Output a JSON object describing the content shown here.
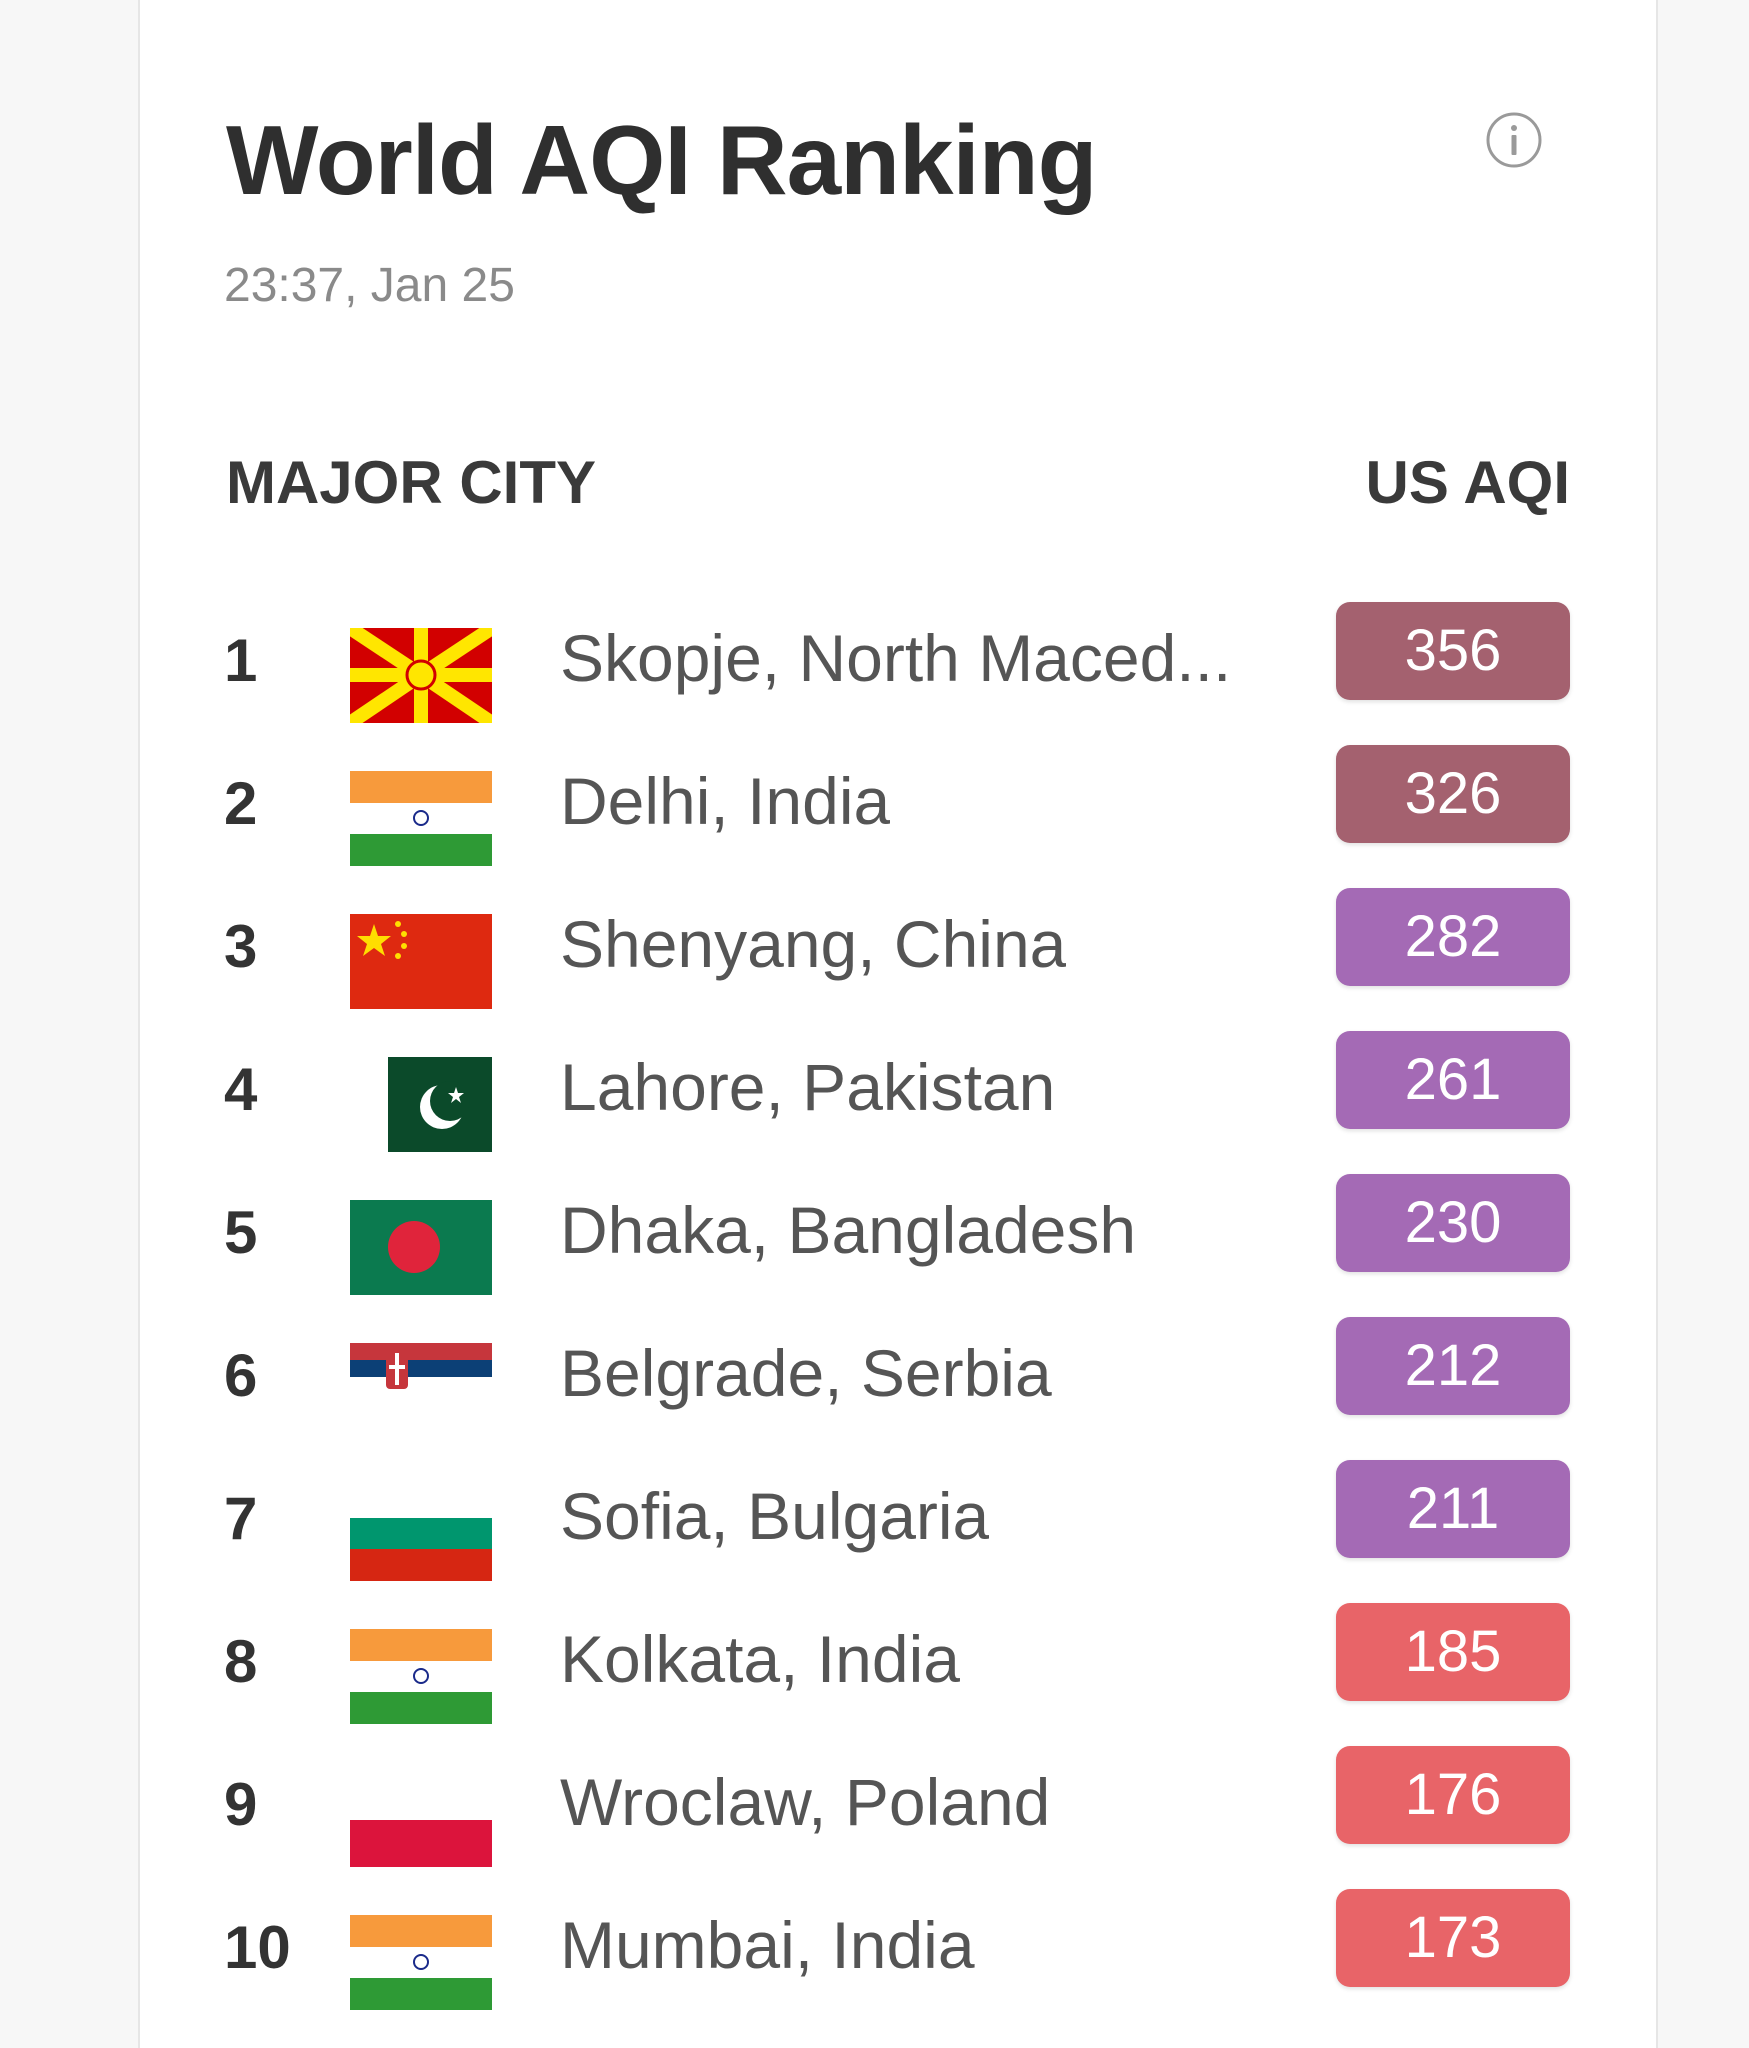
{
  "header": {
    "title": "World AQI Ranking",
    "timestamp": "23:37, Jan 25",
    "info_icon": "info-icon"
  },
  "columns": {
    "city": "MAJOR CITY",
    "aqi": "US AQI"
  },
  "colors": {
    "hazardous": "#a4616f",
    "very_unhealthy": "#a46ab5",
    "unhealthy": "#e86468"
  },
  "rankings": [
    {
      "rank": "1",
      "city": "Skopje, North Maced...",
      "aqi": "356",
      "flag": "north-macedonia-flag-icon",
      "level": "hazardous"
    },
    {
      "rank": "2",
      "city": "Delhi, India",
      "aqi": "326",
      "flag": "india-flag-icon",
      "level": "hazardous"
    },
    {
      "rank": "3",
      "city": "Shenyang, China",
      "aqi": "282",
      "flag": "china-flag-icon",
      "level": "very_unhealthy"
    },
    {
      "rank": "4",
      "city": "Lahore, Pakistan",
      "aqi": "261",
      "flag": "pakistan-flag-icon",
      "level": "very_unhealthy"
    },
    {
      "rank": "5",
      "city": "Dhaka, Bangladesh",
      "aqi": "230",
      "flag": "bangladesh-flag-icon",
      "level": "very_unhealthy"
    },
    {
      "rank": "6",
      "city": "Belgrade, Serbia",
      "aqi": "212",
      "flag": "serbia-flag-icon",
      "level": "very_unhealthy"
    },
    {
      "rank": "7",
      "city": "Sofia, Bulgaria",
      "aqi": "211",
      "flag": "bulgaria-flag-icon",
      "level": "very_unhealthy"
    },
    {
      "rank": "8",
      "city": "Kolkata, India",
      "aqi": "185",
      "flag": "india-flag-icon",
      "level": "unhealthy"
    },
    {
      "rank": "9",
      "city": "Wroclaw, Poland",
      "aqi": "176",
      "flag": "poland-flag-icon",
      "level": "unhealthy"
    },
    {
      "rank": "10",
      "city": "Mumbai, India",
      "aqi": "173",
      "flag": "india-flag-icon",
      "level": "unhealthy"
    }
  ]
}
